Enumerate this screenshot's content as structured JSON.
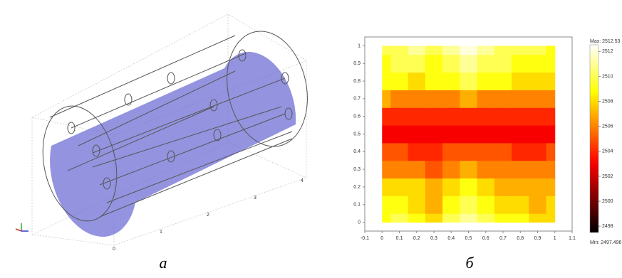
{
  "chart_data": [
    {
      "type": "geometry",
      "caption": "а",
      "xticks": [
        0,
        1,
        2,
        3,
        4
      ],
      "fill_color": "#6f6fd6"
    },
    {
      "type": "heatmap",
      "caption": "б",
      "x": [
        0,
        0.1,
        0.2,
        0.3,
        0.4,
        0.5,
        0.6,
        0.7,
        0.8,
        0.9,
        1
      ],
      "y": [
        0,
        0.1,
        0.2,
        0.3,
        0.4,
        0.5,
        0.6,
        0.7,
        0.8,
        0.9,
        1
      ],
      "z": [
        [
          2509,
          2510,
          2509,
          2508,
          2510,
          2511,
          2510,
          2509,
          2509,
          2508,
          2508
        ],
        [
          2509,
          2509,
          2508,
          2507,
          2509,
          2510,
          2509,
          2508,
          2508,
          2507,
          2508
        ],
        [
          2508,
          2508,
          2508,
          2507,
          2508,
          2509,
          2508,
          2507,
          2507,
          2507,
          2507
        ],
        [
          2506,
          2506,
          2506,
          2505,
          2506,
          2507,
          2506,
          2506,
          2506,
          2506,
          2506
        ],
        [
          2505,
          2505,
          2504,
          2504,
          2505,
          2505,
          2505,
          2505,
          2504,
          2504,
          2505
        ],
        [
          2503,
          2503,
          2503,
          2503,
          2503,
          2503,
          2503,
          2503,
          2503,
          2503,
          2503
        ],
        [
          2504,
          2504,
          2504,
          2504,
          2504,
          2504,
          2504,
          2504,
          2504,
          2504,
          2504
        ],
        [
          2507,
          2506,
          2506,
          2506,
          2506,
          2507,
          2506,
          2506,
          2506,
          2506,
          2506
        ],
        [
          2509,
          2509,
          2508,
          2509,
          2509,
          2510,
          2509,
          2509,
          2508,
          2508,
          2508
        ],
        [
          2509,
          2510,
          2510,
          2509,
          2510,
          2511,
          2510,
          2510,
          2509,
          2509,
          2509
        ],
        [
          2510,
          2510,
          2511,
          2510,
          2511,
          2512,
          2511,
          2510,
          2510,
          2510,
          2509
        ]
      ],
      "xlim": [
        -0.1,
        1.1
      ],
      "ylim": [
        -0.05,
        1.05
      ],
      "xticks": [
        -0.1,
        0,
        0.1,
        0.2,
        0.3,
        0.4,
        0.5,
        0.6,
        0.7,
        0.8,
        0.9,
        1,
        1.1
      ],
      "yticks": [
        0,
        0.1,
        0.2,
        0.3,
        0.4,
        0.5,
        0.6,
        0.7,
        0.8,
        0.9,
        1
      ],
      "zlim": [
        2497.496,
        2512.53
      ],
      "colorbar_ticks": [
        2498,
        2500,
        2502,
        2504,
        2506,
        2508,
        2510,
        2512
      ],
      "max_label": "Max: 2512.53",
      "min_label": "Min: 2497.496",
      "colormap": "hot"
    }
  ]
}
